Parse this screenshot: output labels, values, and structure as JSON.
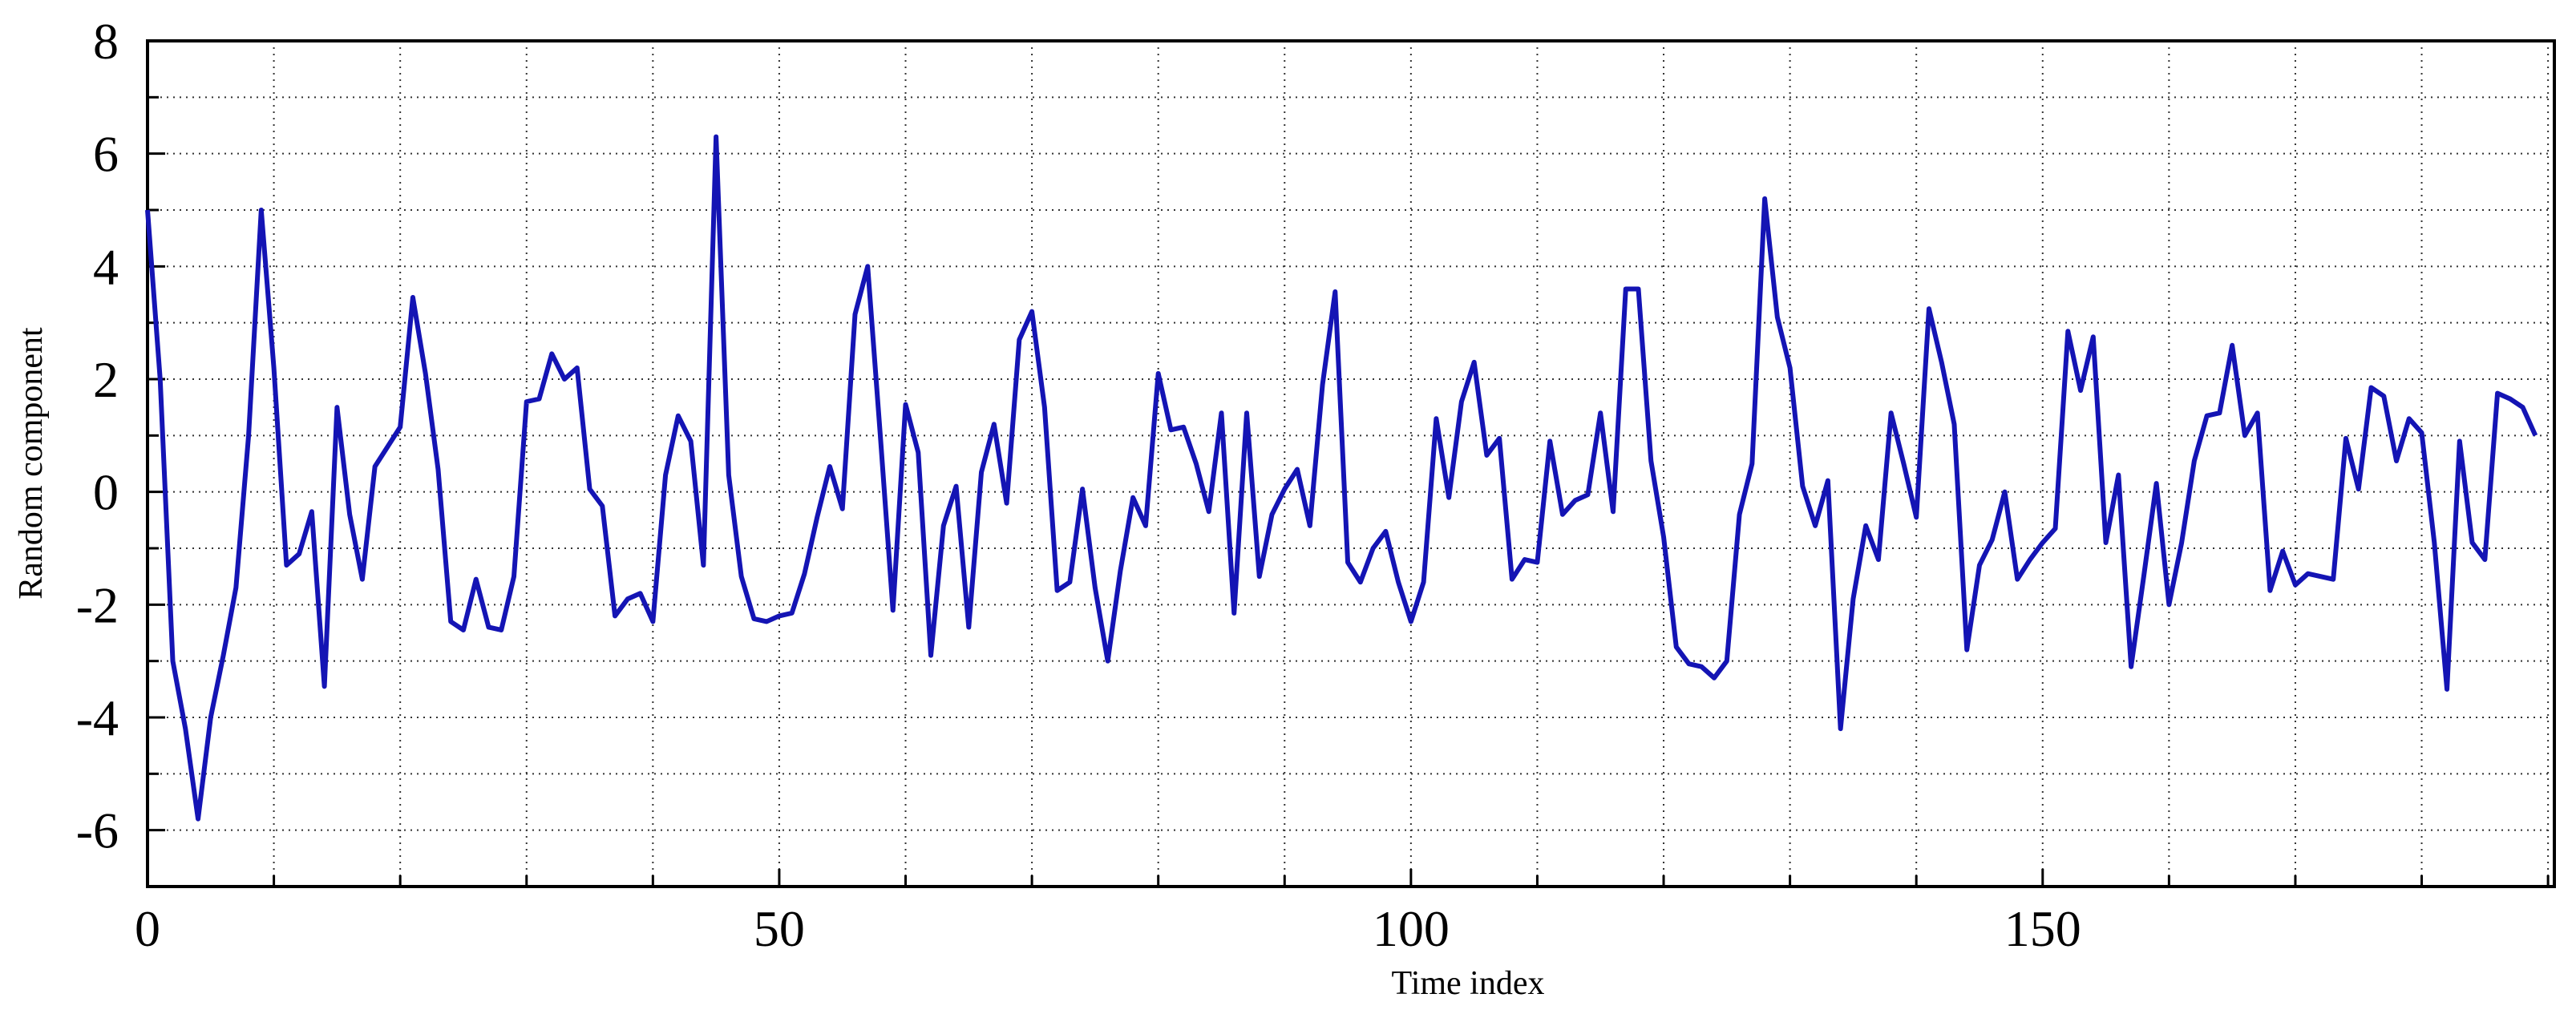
{
  "chart_data": {
    "type": "line",
    "xlabel": "Time index",
    "ylabel": "Random component",
    "x": [
      0,
      1,
      2,
      3,
      4,
      5,
      6,
      7,
      8,
      9,
      10,
      11,
      12,
      13,
      14,
      15,
      16,
      17,
      18,
      19,
      20,
      21,
      22,
      23,
      24,
      25,
      26,
      27,
      28,
      29,
      30,
      31,
      32,
      33,
      34,
      35,
      36,
      37,
      38,
      39,
      40,
      41,
      42,
      43,
      44,
      45,
      46,
      47,
      48,
      49,
      50,
      51,
      52,
      53,
      54,
      55,
      56,
      57,
      58,
      59,
      60,
      61,
      62,
      63,
      64,
      65,
      66,
      67,
      68,
      69,
      70,
      71,
      72,
      73,
      74,
      75,
      76,
      77,
      78,
      79,
      80,
      81,
      82,
      83,
      84,
      85,
      86,
      87,
      88,
      89,
      90,
      91,
      92,
      93,
      94,
      95,
      96,
      97,
      98,
      99,
      100,
      101,
      102,
      103,
      104,
      105,
      106,
      107,
      108,
      109,
      110,
      111,
      112,
      113,
      114,
      115,
      116,
      117,
      118,
      119,
      120,
      121,
      122,
      123,
      124,
      125,
      126,
      127,
      128,
      129,
      130,
      131,
      132,
      133,
      134,
      135,
      136,
      137,
      138,
      139,
      140,
      141,
      142,
      143,
      144,
      145,
      146,
      147,
      148,
      149,
      150,
      151,
      152,
      153,
      154,
      155,
      156,
      157,
      158,
      159,
      160,
      161,
      162,
      163,
      164,
      165,
      166,
      167,
      168,
      169,
      170,
      171,
      172,
      173,
      174,
      175,
      176,
      177,
      178,
      179,
      180,
      181,
      182,
      183,
      184,
      185,
      186,
      187,
      188,
      189
    ],
    "series": [
      {
        "color": "#1414b4",
        "values": [
          5.0,
          2.0,
          -3.0,
          -4.2,
          -5.8,
          -4.0,
          -2.9,
          -1.7,
          1.0,
          5.0,
          2.2,
          -1.3,
          -1.1,
          -0.35,
          -3.45,
          1.5,
          -0.4,
          -1.55,
          0.45,
          0.8,
          1.15,
          3.45,
          2.1,
          0.4,
          -2.3,
          -2.45,
          -1.55,
          -2.4,
          -2.45,
          -1.5,
          1.6,
          1.65,
          2.45,
          2.0,
          2.2,
          0.05,
          -0.25,
          -2.2,
          -1.9,
          -1.8,
          -2.3,
          0.3,
          1.35,
          0.9,
          -1.3,
          6.3,
          0.3,
          -1.5,
          -2.25,
          -2.3,
          -2.2,
          -2.15,
          -1.45,
          -0.45,
          0.45,
          -0.3,
          3.15,
          4.0,
          1.0,
          -2.1,
          1.55,
          0.7,
          -2.9,
          -0.6,
          0.1,
          -2.4,
          0.35,
          1.2,
          -0.2,
          2.7,
          3.2,
          1.5,
          -1.75,
          -1.6,
          0.05,
          -1.7,
          -3.0,
          -1.4,
          -0.1,
          -0.6,
          2.1,
          1.1,
          1.15,
          0.5,
          -0.35,
          1.4,
          -2.15,
          1.4,
          -1.5,
          -0.4,
          0.05,
          0.4,
          -0.6,
          1.9,
          3.55,
          -1.25,
          -1.6,
          -1.0,
          -0.7,
          -1.6,
          -2.3,
          -1.6,
          1.3,
          -0.1,
          1.6,
          2.3,
          0.65,
          0.95,
          -1.55,
          -1.2,
          -1.25,
          0.9,
          -0.4,
          -0.15,
          -0.05,
          1.4,
          -0.35,
          3.6,
          3.6,
          0.55,
          -0.8,
          -2.75,
          -3.05,
          -3.1,
          -3.3,
          -3.0,
          -0.4,
          0.5,
          5.2,
          3.1,
          2.2,
          0.1,
          -0.6,
          0.2,
          -4.2,
          -1.9,
          -0.6,
          -1.2,
          1.4,
          0.5,
          -0.45,
          3.25,
          2.3,
          1.2,
          -2.8,
          -1.3,
          -0.85,
          0.0,
          -1.55,
          -1.2,
          -0.9,
          -0.65,
          2.85,
          1.8,
          2.75,
          -0.9,
          0.3,
          -3.1,
          -1.5,
          0.15,
          -2.0,
          -0.9,
          0.55,
          1.35,
          1.4,
          2.6,
          1.0,
          1.4,
          -1.75,
          -1.05,
          -1.65,
          -1.45,
          -1.5,
          -1.55,
          0.95,
          0.05,
          1.85,
          1.7,
          0.55,
          1.3,
          1.05,
          -0.9,
          -3.5,
          0.9,
          -0.9,
          -1.2,
          1.75,
          1.65,
          1.5,
          1.0
        ]
      }
    ],
    "xlim": [
      0,
      190.5
    ],
    "xticks": [
      0,
      50,
      100,
      150
    ],
    "xminorticks": [
      10,
      20,
      30,
      40,
      60,
      70,
      80,
      90,
      110,
      120,
      130,
      140,
      160,
      170,
      180,
      190
    ],
    "ylim": [
      -7,
      8
    ],
    "yticks": [
      -6,
      -4,
      -2,
      0,
      2,
      4,
      6,
      8
    ],
    "yminorticks": [
      -5,
      -3,
      -1,
      1,
      3,
      5,
      7
    ],
    "grid": true
  }
}
